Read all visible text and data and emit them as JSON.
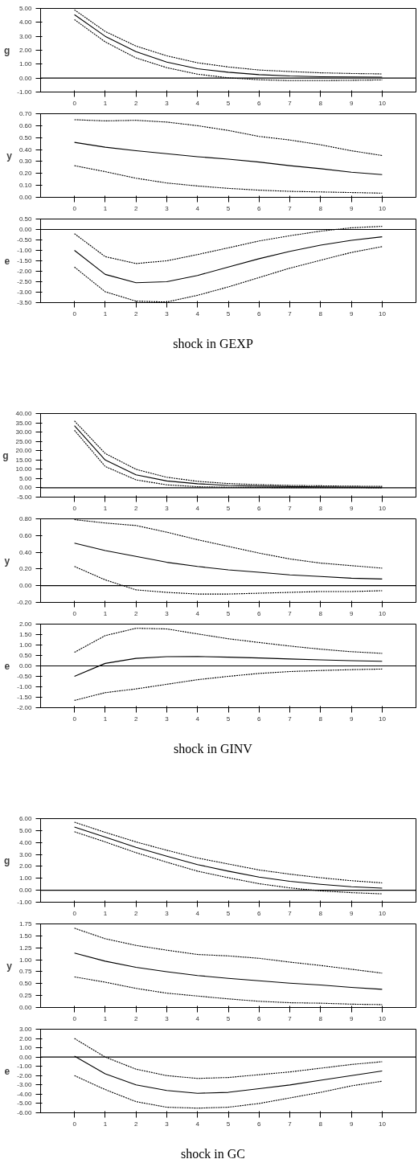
{
  "chart_data": [
    {
      "type": "line",
      "ylabel": "g",
      "x": [
        0,
        1,
        2,
        3,
        4,
        5,
        6,
        7,
        8,
        9,
        10
      ],
      "xlim": [
        -1.1,
        11.1
      ],
      "xticks": [
        0,
        1,
        2,
        3,
        4,
        5,
        6,
        7,
        8,
        9,
        10
      ],
      "ylim": [
        -1,
        5
      ],
      "yticks": [
        {
          "value": -1,
          "label": "-1.00"
        },
        {
          "value": 0,
          "label": "0.00"
        },
        {
          "value": 1,
          "label": "1.00"
        },
        {
          "value": 2,
          "label": "2.00"
        },
        {
          "value": 3,
          "label": "3.00"
        },
        {
          "value": 4,
          "label": "4.00"
        },
        {
          "value": 5,
          "label": "5.00"
        }
      ],
      "series": [
        {
          "color": "#000000",
          "line_style": "dotted",
          "values": [
            4.9,
            3.35,
            2.3,
            1.6,
            1.1,
            0.8,
            0.58,
            0.47,
            0.38,
            0.33,
            0.3
          ]
        },
        {
          "color": "#000000",
          "line_style": "solid",
          "values": [
            4.55,
            3.0,
            1.9,
            1.15,
            0.67,
            0.42,
            0.25,
            0.15,
            0.1,
            0.08,
            0.07
          ]
        },
        {
          "color": "#000000",
          "line_style": "dotted",
          "values": [
            4.2,
            2.6,
            1.45,
            0.75,
            0.28,
            0.02,
            -0.12,
            -0.18,
            -0.18,
            -0.16,
            -0.13
          ]
        }
      ],
      "ref_lines": [
        {
          "axis": "y",
          "value": 0,
          "color": "#000000"
        }
      ]
    },
    {
      "type": "line",
      "ylabel": "y",
      "x": [
        0,
        1,
        2,
        3,
        4,
        5,
        6,
        7,
        8,
        9,
        10
      ],
      "xlim": [
        -1.1,
        11.1
      ],
      "xticks": [
        0,
        1,
        2,
        3,
        4,
        5,
        6,
        7,
        8,
        9,
        10
      ],
      "ylim": [
        0,
        0.7
      ],
      "yticks": [
        {
          "value": 0,
          "label": "0.00"
        },
        {
          "value": 0.1,
          "label": "0.10"
        },
        {
          "value": 0.2,
          "label": "0.20"
        },
        {
          "value": 0.3,
          "label": "0.30"
        },
        {
          "value": 0.4,
          "label": "0.40"
        },
        {
          "value": 0.5,
          "label": "0.50"
        },
        {
          "value": 0.6,
          "label": "0.60"
        },
        {
          "value": 0.7,
          "label": "0.70"
        }
      ],
      "series": [
        {
          "color": "#000000",
          "line_style": "dotted",
          "values": [
            0.65,
            0.64,
            0.645,
            0.63,
            0.6,
            0.56,
            0.51,
            0.48,
            0.44,
            0.39,
            0.35
          ]
        },
        {
          "color": "#000000",
          "line_style": "solid",
          "values": [
            0.46,
            0.42,
            0.39,
            0.365,
            0.34,
            0.32,
            0.295,
            0.265,
            0.24,
            0.21,
            0.19
          ]
        },
        {
          "color": "#000000",
          "line_style": "dotted",
          "values": [
            0.265,
            0.215,
            0.16,
            0.12,
            0.095,
            0.075,
            0.06,
            0.05,
            0.045,
            0.04,
            0.035
          ]
        }
      ]
    },
    {
      "type": "line",
      "ylabel": "e",
      "x": [
        0,
        1,
        2,
        3,
        4,
        5,
        6,
        7,
        8,
        9,
        10
      ],
      "xlim": [
        -1.1,
        11.1
      ],
      "xticks": [
        0,
        1,
        2,
        3,
        4,
        5,
        6,
        7,
        8,
        9,
        10
      ],
      "ylim": [
        -3.5,
        0.5
      ],
      "yticks": [
        {
          "value": -3.5,
          "label": "-3.50"
        },
        {
          "value": -3,
          "label": "-3.00"
        },
        {
          "value": -2.5,
          "label": "-2.50"
        },
        {
          "value": -2,
          "label": "-2.00"
        },
        {
          "value": -1.5,
          "label": "-1.50"
        },
        {
          "value": -1,
          "label": "-1.00"
        },
        {
          "value": -0.5,
          "label": "-0.50"
        },
        {
          "value": 0,
          "label": "0.00"
        },
        {
          "value": 0.5,
          "label": "0.50"
        }
      ],
      "series": [
        {
          "color": "#000000",
          "line_style": "dotted",
          "values": [
            -0.2,
            -1.3,
            -1.63,
            -1.5,
            -1.2,
            -0.88,
            -0.55,
            -0.3,
            -0.08,
            0.08,
            0.15
          ]
        },
        {
          "color": "#000000",
          "line_style": "solid",
          "values": [
            -1.0,
            -2.15,
            -2.55,
            -2.5,
            -2.2,
            -1.8,
            -1.4,
            -1.05,
            -0.75,
            -0.52,
            -0.35
          ]
        },
        {
          "color": "#000000",
          "line_style": "dotted",
          "values": [
            -1.8,
            -2.98,
            -3.43,
            -3.47,
            -3.15,
            -2.75,
            -2.3,
            -1.85,
            -1.47,
            -1.1,
            -0.82
          ]
        }
      ],
      "ref_lines": [
        {
          "axis": "y",
          "value": 0,
          "color": "#000000"
        }
      ],
      "annotations": [
        "shock in GEXP"
      ]
    },
    {
      "type": "line",
      "ylabel": "g",
      "x": [
        0,
        1,
        2,
        3,
        4,
        5,
        6,
        7,
        8,
        9,
        10
      ],
      "xlim": [
        -1.1,
        11.1
      ],
      "xticks": [
        0,
        1,
        2,
        3,
        4,
        5,
        6,
        7,
        8,
        9,
        10
      ],
      "ylim": [
        -5,
        40
      ],
      "yticks": [
        {
          "value": -5,
          "label": "-5.00"
        },
        {
          "value": 0,
          "label": "0.00"
        },
        {
          "value": 5,
          "label": "5.00"
        },
        {
          "value": 10,
          "label": "10.00"
        },
        {
          "value": 15,
          "label": "15.00"
        },
        {
          "value": 20,
          "label": "20.00"
        },
        {
          "value": 25,
          "label": "25.00"
        },
        {
          "value": 30,
          "label": "30.00"
        },
        {
          "value": 35,
          "label": "35.00"
        },
        {
          "value": 40,
          "label": "40.00"
        }
      ],
      "series": [
        {
          "color": "#000000",
          "line_style": "dotted",
          "values": [
            36,
            18.5,
            10,
            5.7,
            3.5,
            2.3,
            1.7,
            1.3,
            1.1,
            0.9,
            0.8
          ]
        },
        {
          "color": "#000000",
          "line_style": "solid",
          "values": [
            33.5,
            15,
            7,
            3.7,
            2.2,
            1.3,
            0.9,
            0.7,
            0.5,
            0.4,
            0.3
          ]
        },
        {
          "color": "#000000",
          "line_style": "dotted",
          "values": [
            31,
            11.5,
            4.3,
            1.6,
            0.6,
            0.3,
            0.2,
            0.1,
            0.1,
            0.1,
            0.0
          ]
        }
      ],
      "ref_lines": [
        {
          "axis": "y",
          "value": 0,
          "color": "#000000"
        }
      ]
    },
    {
      "type": "line",
      "ylabel": "y",
      "x": [
        0,
        1,
        2,
        3,
        4,
        5,
        6,
        7,
        8,
        9,
        10
      ],
      "xlim": [
        -1.1,
        11.1
      ],
      "xticks": [
        0,
        1,
        2,
        3,
        4,
        5,
        6,
        7,
        8,
        9,
        10
      ],
      "ylim": [
        -0.2,
        0.8
      ],
      "yticks": [
        {
          "value": -0.2,
          "label": "-0.20"
        },
        {
          "value": 0,
          "label": "0.00"
        },
        {
          "value": 0.2,
          "label": "0.20"
        },
        {
          "value": 0.4,
          "label": "0.40"
        },
        {
          "value": 0.6,
          "label": "0.60"
        },
        {
          "value": 0.8,
          "label": "0.80"
        }
      ],
      "series": [
        {
          "color": "#000000",
          "line_style": "dotted",
          "values": [
            0.79,
            0.75,
            0.72,
            0.64,
            0.55,
            0.47,
            0.39,
            0.32,
            0.27,
            0.24,
            0.21
          ]
        },
        {
          "color": "#000000",
          "line_style": "solid",
          "values": [
            0.51,
            0.42,
            0.35,
            0.28,
            0.23,
            0.19,
            0.16,
            0.13,
            0.11,
            0.09,
            0.08
          ]
        },
        {
          "color": "#000000",
          "line_style": "dotted",
          "values": [
            0.23,
            0.07,
            -0.05,
            -0.08,
            -0.1,
            -0.1,
            -0.09,
            -0.08,
            -0.07,
            -0.07,
            -0.06
          ]
        }
      ],
      "ref_lines": [
        {
          "axis": "y",
          "value": 0,
          "color": "#000000"
        }
      ]
    },
    {
      "type": "line",
      "ylabel": "e",
      "x": [
        0,
        1,
        2,
        3,
        4,
        5,
        6,
        7,
        8,
        9,
        10
      ],
      "xlim": [
        -1.1,
        11.1
      ],
      "xticks": [
        0,
        1,
        2,
        3,
        4,
        5,
        6,
        7,
        8,
        9,
        10
      ],
      "ylim": [
        -2,
        2
      ],
      "yticks": [
        {
          "value": -2,
          "label": "-2.00"
        },
        {
          "value": -1.5,
          "label": "-1.50"
        },
        {
          "value": -1,
          "label": "-1.00"
        },
        {
          "value": -0.5,
          "label": "-0.50"
        },
        {
          "value": 0,
          "label": "0.00"
        },
        {
          "value": 0.5,
          "label": "0.50"
        },
        {
          "value": 1,
          "label": "1.00"
        },
        {
          "value": 1.5,
          "label": "1.50"
        },
        {
          "value": 2,
          "label": "2.00"
        }
      ],
      "series": [
        {
          "color": "#000000",
          "line_style": "dotted",
          "values": [
            0.65,
            1.45,
            1.8,
            1.77,
            1.53,
            1.3,
            1.12,
            0.95,
            0.8,
            0.68,
            0.6
          ]
        },
        {
          "color": "#000000",
          "line_style": "solid",
          "values": [
            -0.5,
            0.12,
            0.36,
            0.44,
            0.45,
            0.42,
            0.38,
            0.33,
            0.29,
            0.25,
            0.22
          ]
        },
        {
          "color": "#000000",
          "line_style": "dotted",
          "values": [
            -1.65,
            -1.28,
            -1.1,
            -0.88,
            -0.66,
            -0.5,
            -0.36,
            -0.27,
            -0.22,
            -0.18,
            -0.15
          ]
        }
      ],
      "ref_lines": [
        {
          "axis": "y",
          "value": 0,
          "color": "#000000"
        }
      ],
      "annotations": [
        "shock in GINV"
      ]
    },
    {
      "type": "line",
      "ylabel": "g",
      "x": [
        0,
        1,
        2,
        3,
        4,
        5,
        6,
        7,
        8,
        9,
        10
      ],
      "xlim": [
        -1.1,
        11.1
      ],
      "xticks": [
        0,
        1,
        2,
        3,
        4,
        5,
        6,
        7,
        8,
        9,
        10
      ],
      "ylim": [
        -1,
        6
      ],
      "yticks": [
        {
          "value": -1,
          "label": "-1.00"
        },
        {
          "value": 0,
          "label": "0.00"
        },
        {
          "value": 1,
          "label": "1.00"
        },
        {
          "value": 2,
          "label": "2.00"
        },
        {
          "value": 3,
          "label": "3.00"
        },
        {
          "value": 4,
          "label": "4.00"
        },
        {
          "value": 5,
          "label": "5.00"
        },
        {
          "value": 6,
          "label": "6.00"
        }
      ],
      "series": [
        {
          "color": "#000000",
          "line_style": "dotted",
          "values": [
            5.7,
            4.85,
            4.05,
            3.35,
            2.7,
            2.2,
            1.7,
            1.35,
            1.05,
            0.8,
            0.62
          ]
        },
        {
          "color": "#000000",
          "line_style": "solid",
          "values": [
            5.3,
            4.45,
            3.6,
            2.85,
            2.15,
            1.6,
            1.1,
            0.75,
            0.5,
            0.3,
            0.18
          ]
        },
        {
          "color": "#000000",
          "line_style": "dotted",
          "values": [
            4.9,
            4.05,
            3.15,
            2.35,
            1.6,
            1.05,
            0.55,
            0.2,
            -0.05,
            -0.2,
            -0.3
          ]
        }
      ],
      "ref_lines": [
        {
          "axis": "y",
          "value": 0,
          "color": "#000000"
        }
      ]
    },
    {
      "type": "line",
      "ylabel": "y",
      "x": [
        0,
        1,
        2,
        3,
        4,
        5,
        6,
        7,
        8,
        9,
        10
      ],
      "xlim": [
        -1.1,
        11.1
      ],
      "xticks": [
        0,
        1,
        2,
        3,
        4,
        5,
        6,
        7,
        8,
        9,
        10
      ],
      "ylim": [
        0,
        1.75
      ],
      "yticks": [
        {
          "value": 0,
          "label": "0.00"
        },
        {
          "value": 0.25,
          "label": "0.25"
        },
        {
          "value": 0.5,
          "label": "0.50"
        },
        {
          "value": 0.75,
          "label": "0.75"
        },
        {
          "value": 1,
          "label": "1.00"
        },
        {
          "value": 1.25,
          "label": "1.25"
        },
        {
          "value": 1.5,
          "label": "1.50"
        },
        {
          "value": 1.75,
          "label": "1.75"
        }
      ],
      "series": [
        {
          "color": "#000000",
          "line_style": "dotted",
          "values": [
            1.66,
            1.44,
            1.3,
            1.2,
            1.11,
            1.08,
            1.03,
            0.95,
            0.88,
            0.8,
            0.72
          ]
        },
        {
          "color": "#000000",
          "line_style": "solid",
          "values": [
            1.14,
            0.97,
            0.84,
            0.75,
            0.67,
            0.61,
            0.56,
            0.51,
            0.47,
            0.42,
            0.38
          ]
        },
        {
          "color": "#000000",
          "line_style": "dotted",
          "values": [
            0.64,
            0.53,
            0.4,
            0.3,
            0.24,
            0.18,
            0.13,
            0.1,
            0.09,
            0.07,
            0.06
          ]
        }
      ]
    },
    {
      "type": "line",
      "ylabel": "e",
      "x": [
        0,
        1,
        2,
        3,
        4,
        5,
        6,
        7,
        8,
        9,
        10
      ],
      "xlim": [
        -1.1,
        11.1
      ],
      "xticks": [
        0,
        1,
        2,
        3,
        4,
        5,
        6,
        7,
        8,
        9,
        10
      ],
      "ylim": [
        -6,
        3
      ],
      "yticks": [
        {
          "value": -6,
          "label": "-6.00"
        },
        {
          "value": -5,
          "label": "-5.00"
        },
        {
          "value": -4,
          "label": "-4.00"
        },
        {
          "value": -3,
          "label": "-3.00"
        },
        {
          "value": -2,
          "label": "-2.00"
        },
        {
          "value": -1,
          "label": "-1.00"
        },
        {
          "value": 0,
          "label": "0.00"
        },
        {
          "value": 1,
          "label": "1.00"
        },
        {
          "value": 2,
          "label": "2.00"
        },
        {
          "value": 3,
          "label": "3.00"
        }
      ],
      "series": [
        {
          "color": "#000000",
          "line_style": "dotted",
          "values": [
            2.0,
            0.0,
            -1.3,
            -2.0,
            -2.3,
            -2.2,
            -1.9,
            -1.6,
            -1.2,
            -0.8,
            -0.5
          ]
        },
        {
          "color": "#000000",
          "line_style": "solid",
          "values": [
            0.1,
            -1.8,
            -3.0,
            -3.6,
            -3.9,
            -3.8,
            -3.4,
            -3.0,
            -2.5,
            -2.0,
            -1.5
          ]
        },
        {
          "color": "#000000",
          "line_style": "dotted",
          "values": [
            -2.0,
            -3.5,
            -4.8,
            -5.4,
            -5.5,
            -5.4,
            -5.0,
            -4.4,
            -3.8,
            -3.1,
            -2.6
          ]
        }
      ],
      "ref_lines": [
        {
          "axis": "y",
          "value": 0,
          "color": "#000000"
        }
      ],
      "annotations": [
        "shock in GC"
      ]
    }
  ]
}
